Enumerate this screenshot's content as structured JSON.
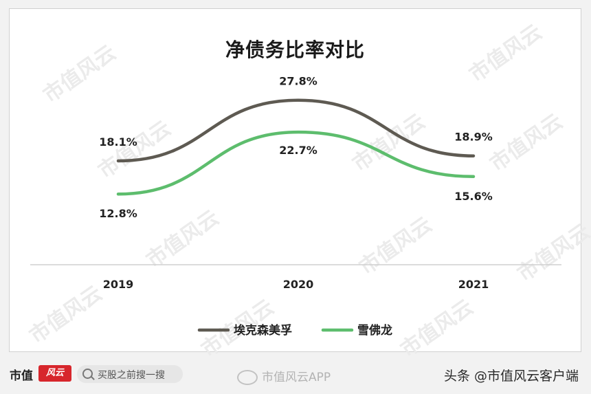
{
  "chart_data": {
    "type": "line",
    "title": "净债务比率对比",
    "categories": [
      "2019",
      "2020",
      "2021"
    ],
    "series": [
      {
        "name": "埃克森美孚",
        "values": [
          18.1,
          27.8,
          18.9
        ],
        "labels": [
          "18.1%",
          "27.8%",
          "18.9%"
        ],
        "color": "#5e5a52"
      },
      {
        "name": "雪佛龙",
        "values": [
          12.8,
          22.7,
          15.6
        ],
        "labels": [
          "12.8%",
          "22.7%",
          "15.6%"
        ],
        "color": "#5dbd6d"
      }
    ],
    "legend": "bottom",
    "grid": false,
    "line_style": "smooth"
  },
  "watermark": "市值风云",
  "footer": {
    "brand": "市值",
    "brand_mark": "风云",
    "search_placeholder": "买股之前搜一搜",
    "weibo_text": "市值风云APP",
    "credit": "头条 @市值风云客户端"
  }
}
